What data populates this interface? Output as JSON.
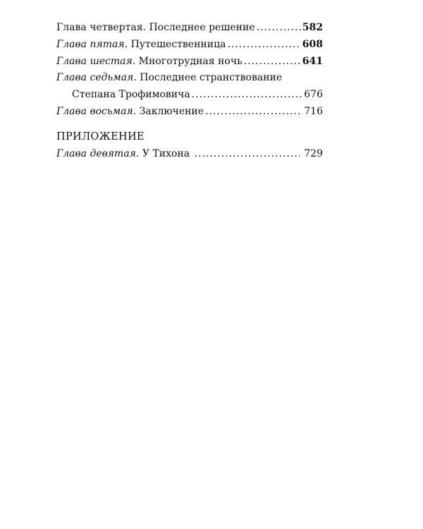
{
  "entries": [
    {
      "chapter": "Глава четвертая",
      "title": "Последнее решение",
      "page": "582",
      "italic": false
    },
    {
      "chapter": "Глава пятая",
      "title": "Путешественница",
      "page": "608",
      "italic": true
    },
    {
      "chapter": "Глава шестая",
      "title": "Многотрудная ночь",
      "page": "641",
      "italic": true
    },
    {
      "chapter": "Глава седьмая",
      "title": "Последнее странствование",
      "title_cont": "Степана Трофимовича",
      "page": "676",
      "italic": true
    },
    {
      "chapter": "Глава восьмая",
      "title": "Заключение",
      "page": "716",
      "italic": true
    }
  ],
  "appendix": {
    "heading": "ПРИЛОЖЕНИЕ",
    "entry": {
      "chapter": "Глава девятая",
      "title": "У Тихона",
      "page": "729"
    }
  }
}
